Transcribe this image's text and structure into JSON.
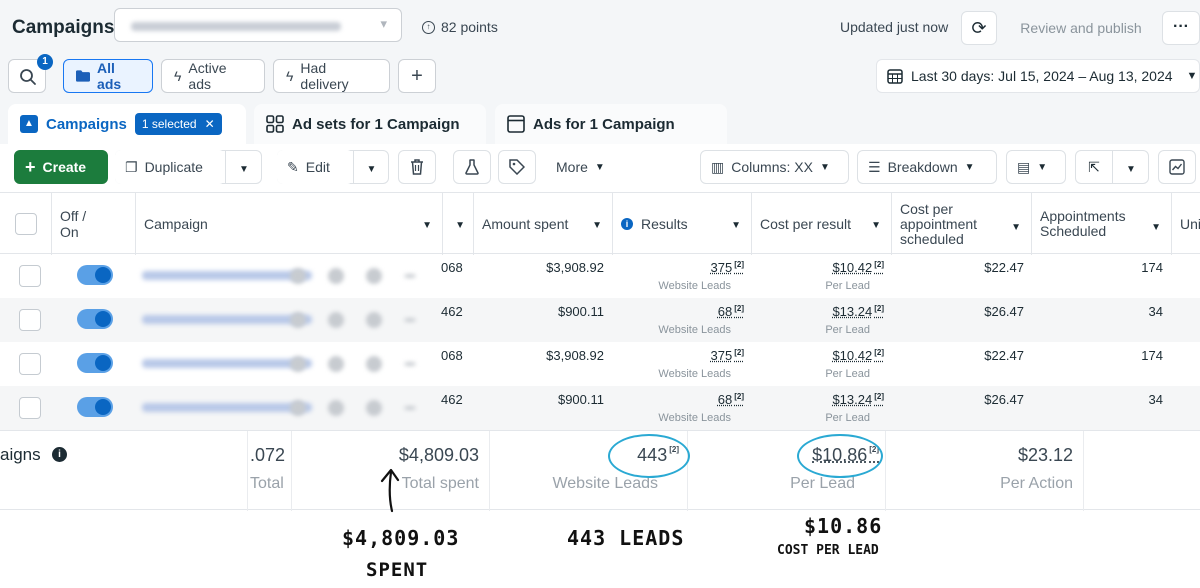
{
  "header": {
    "title": "Campaigns",
    "points": "82 points",
    "updated": "Updated just now",
    "review_publish": "Review and publish",
    "more": "···"
  },
  "filters": {
    "search_badge": "1",
    "chips": [
      {
        "label": "All ads",
        "icon": "folder-icon",
        "active": true
      },
      {
        "label": "Active ads",
        "icon": "lightning-icon",
        "active": false
      },
      {
        "label": "Had delivery",
        "icon": "lightning-icon",
        "active": false
      }
    ],
    "add": "+",
    "date_range": "Last 30 days: Jul 15, 2024 – Aug 13, 2024"
  },
  "tabs": {
    "campaigns": "Campaigns",
    "selected_pill": "1 selected",
    "adsets": "Ad sets for 1 Campaign",
    "ads": "Ads for 1 Campaign"
  },
  "toolbar": {
    "create": "Create",
    "duplicate": "Duplicate",
    "edit": "Edit",
    "more": "More",
    "columns": "Columns: XX",
    "breakdown": "Breakdown"
  },
  "table": {
    "headers": {
      "off_on": "Off / On",
      "campaign": "Campaign",
      "amount_spent": "Amount spent",
      "results": "Results",
      "cost_per_result": "Cost per result",
      "cost_per_appt": "Cost per appointment scheduled",
      "appointments": "Appointments Scheduled",
      "next": "Uni"
    },
    "rows": [
      {
        "hidden": "068",
        "amount": "$3,908.92",
        "results": "375",
        "results_sup": "[2]",
        "results_sub": "Website Leads",
        "cpr": "$10.42",
        "cpr_sup": "[2]",
        "cpr_sub": "Per Lead",
        "cpa": "$22.47",
        "appts": "174"
      },
      {
        "hidden": "462",
        "amount": "$900.11",
        "results": "68",
        "results_sup": "[2]",
        "results_sub": "Website Leads",
        "cpr": "$13.24",
        "cpr_sup": "[2]",
        "cpr_sub": "Per Lead",
        "cpa": "$26.47",
        "appts": "34"
      },
      {
        "hidden": "068",
        "amount": "$3,908.92",
        "results": "375",
        "results_sup": "[2]",
        "results_sub": "Website Leads",
        "cpr": "$10.42",
        "cpr_sup": "[2]",
        "cpr_sub": "Per Lead",
        "cpa": "$22.47",
        "appts": "174"
      },
      {
        "hidden": "462",
        "amount": "$900.11",
        "results": "68",
        "results_sup": "[2]",
        "results_sub": "Website Leads",
        "cpr": "$13.24",
        "cpr_sup": "[2]",
        "cpr_sub": "Per Lead",
        "cpa": "$26.47",
        "appts": "34"
      }
    ]
  },
  "summary": {
    "label": "aigns",
    "hidden_val": ".072",
    "hidden_lbl": "Total",
    "spent": "$4,809.03",
    "spent_lbl": "Total spent",
    "leads": "443",
    "leads_sup": "[2]",
    "leads_lbl": "Website Leads",
    "cpl": "$10.86",
    "cpl_sup": "[2]",
    "cpl_lbl": "Per Lead",
    "per_action": "$23.12",
    "per_action_lbl": "Per Action"
  },
  "annotations": {
    "spent_line1": "$4,809.03",
    "spent_line2": "SPENT",
    "leads": "443 LEADS",
    "cpl_line1": "$10.86",
    "cpl_line2": "COST PER LEAD"
  },
  "colors": {
    "accent": "#0a66c2",
    "create_green": "#1c7c3d",
    "highlight_circle": "#2aa9d3"
  }
}
